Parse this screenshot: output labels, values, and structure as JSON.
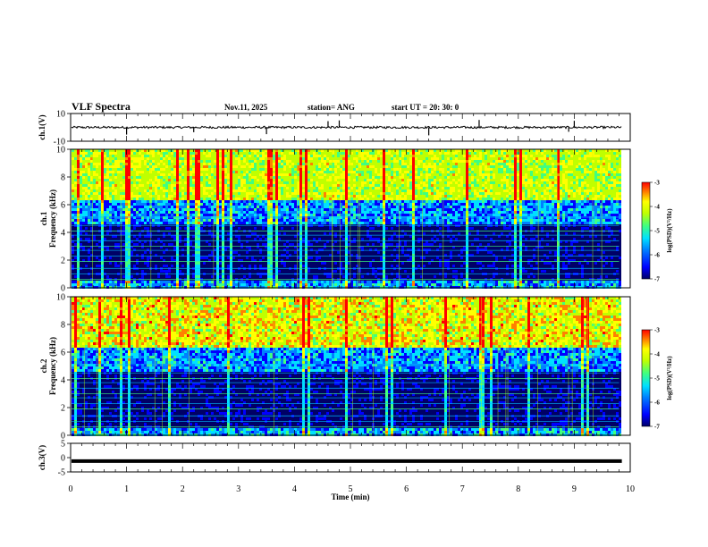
{
  "header": {
    "title": "VLF Spectra",
    "date": "Nov.11, 2025",
    "station": "station= ANG",
    "start": "start  UT =   20: 30: 0"
  },
  "colors": {
    "scale": [
      "#000066",
      "#0000ff",
      "#0080ff",
      "#00e0ff",
      "#40ff80",
      "#c0ff00",
      "#ffff00",
      "#ff8000",
      "#ff0000"
    ],
    "ink": "#000000",
    "background": "#ffffff"
  },
  "chart_data": [
    {
      "type": "line",
      "name": "ch1-waveform",
      "ylabel": "ch.1(V)",
      "ylim": [
        -10,
        10
      ],
      "yticks": [
        "10",
        "-10"
      ],
      "xlim": [
        0,
        10
      ],
      "baseline": 0,
      "noise_amplitude": 0.8,
      "spikes_x": [
        1.0,
        2.2,
        3.5,
        4.6,
        4.8,
        6.4,
        7.3,
        8.9,
        9.0
      ]
    },
    {
      "type": "heatmap",
      "name": "ch1-spectrogram",
      "ylabel_line1": "ch.1",
      "ylabel_line2": "Frequency (kHz)",
      "ylim": [
        0,
        10
      ],
      "yticks": [
        "0",
        "2",
        "4",
        "6",
        "8",
        "10"
      ],
      "xlim": [
        0,
        9.8
      ],
      "z_range": [
        -7,
        -3
      ],
      "intensity": 0.6,
      "colorbar": {
        "ticks": [
          "-3",
          "-4",
          "-5",
          "-6",
          "-7"
        ],
        "label": "log(PSD)(V²/Hz)"
      }
    },
    {
      "type": "heatmap",
      "name": "ch2-spectrogram",
      "ylabel_line1": "ch.2",
      "ylabel_line2": "Frequency (kHz)",
      "ylim": [
        0,
        10
      ],
      "yticks": [
        "0",
        "2",
        "4",
        "6",
        "8",
        "10"
      ],
      "xlim": [
        0,
        9.8
      ],
      "z_range": [
        -7,
        -3
      ],
      "intensity": 0.95,
      "colorbar": {
        "ticks": [
          "-3",
          "-4",
          "-5",
          "-6",
          "-7"
        ],
        "label": "log(PSD)(V²/Hz)"
      }
    },
    {
      "type": "line",
      "name": "ch3-waveform",
      "ylabel": "ch.3(V)",
      "ylim": [
        -5,
        5
      ],
      "yticks": [
        "5",
        "0",
        "-5"
      ],
      "xlim": [
        0,
        10
      ],
      "baseline": -1.2,
      "noise_amplitude": 0
    }
  ],
  "xaxis": {
    "label": "Time (min)",
    "range": [
      0,
      10
    ],
    "ticks": [
      "0",
      "1",
      "2",
      "3",
      "4",
      "5",
      "6",
      "7",
      "8",
      "9",
      "10"
    ]
  }
}
